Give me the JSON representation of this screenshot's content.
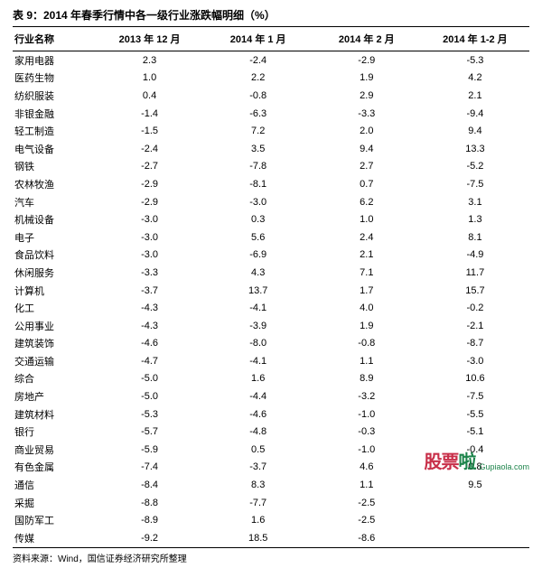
{
  "title": "表 9：2014 年春季行情中各一级行业涨跌幅明细（%）",
  "columns": [
    "行业名称",
    "2013 年 12 月",
    "2014 年 1 月",
    "2014 年 2 月",
    "2014 年 1-2 月"
  ],
  "rows": [
    [
      "家用电器",
      "2.3",
      "-2.4",
      "-2.9",
      "-5.3"
    ],
    [
      "医药生物",
      "1.0",
      "2.2",
      "1.9",
      "4.2"
    ],
    [
      "纺织服装",
      "0.4",
      "-0.8",
      "2.9",
      "2.1"
    ],
    [
      "非银金融",
      "-1.4",
      "-6.3",
      "-3.3",
      "-9.4"
    ],
    [
      "轻工制造",
      "-1.5",
      "7.2",
      "2.0",
      "9.4"
    ],
    [
      "电气设备",
      "-2.4",
      "3.5",
      "9.4",
      "13.3"
    ],
    [
      "钢铁",
      "-2.7",
      "-7.8",
      "2.7",
      "-5.2"
    ],
    [
      "农林牧渔",
      "-2.9",
      "-8.1",
      "0.7",
      "-7.5"
    ],
    [
      "汽车",
      "-2.9",
      "-3.0",
      "6.2",
      "3.1"
    ],
    [
      "机械设备",
      "-3.0",
      "0.3",
      "1.0",
      "1.3"
    ],
    [
      "电子",
      "-3.0",
      "5.6",
      "2.4",
      "8.1"
    ],
    [
      "食品饮料",
      "-3.0",
      "-6.9",
      "2.1",
      "-4.9"
    ],
    [
      "休闲服务",
      "-3.3",
      "4.3",
      "7.1",
      "11.7"
    ],
    [
      "计算机",
      "-3.7",
      "13.7",
      "1.7",
      "15.7"
    ],
    [
      "化工",
      "-4.3",
      "-4.1",
      "4.0",
      "-0.2"
    ],
    [
      "公用事业",
      "-4.3",
      "-3.9",
      "1.9",
      "-2.1"
    ],
    [
      "建筑装饰",
      "-4.6",
      "-8.0",
      "-0.8",
      "-8.7"
    ],
    [
      "交通运输",
      "-4.7",
      "-4.1",
      "1.1",
      "-3.0"
    ],
    [
      "综合",
      "-5.0",
      "1.6",
      "8.9",
      "10.6"
    ],
    [
      "房地产",
      "-5.0",
      "-4.4",
      "-3.2",
      "-7.5"
    ],
    [
      "建筑材料",
      "-5.3",
      "-4.6",
      "-1.0",
      "-5.5"
    ],
    [
      "银行",
      "-5.7",
      "-4.8",
      "-0.3",
      "-5.1"
    ],
    [
      "商业贸易",
      "-5.9",
      "0.5",
      "-1.0",
      "-0.4"
    ],
    [
      "有色金属",
      "-7.4",
      "-3.7",
      "4.6",
      "0.8"
    ],
    [
      "通信",
      "-8.4",
      "8.3",
      "1.1",
      "9.5"
    ],
    [
      "采掘",
      "-8.8",
      "-7.7",
      "-2.5",
      ""
    ],
    [
      "国防军工",
      "-8.9",
      "1.6",
      "-2.5",
      ""
    ],
    [
      "传媒",
      "-9.2",
      "18.5",
      "-8.6",
      ""
    ]
  ],
  "source": "资料来源：Wind，国信证券经济研究所整理",
  "watermark": {
    "text_red": "股票",
    "text_green": "啦",
    "url": "Gupiaola.com"
  },
  "style": {
    "text_color": "#000000",
    "border_color": "#000000",
    "wm_red": "#c41e3a",
    "wm_green": "#0a7a3c",
    "title_fontsize": 12,
    "body_fontsize": 11,
    "source_fontsize": 10
  }
}
